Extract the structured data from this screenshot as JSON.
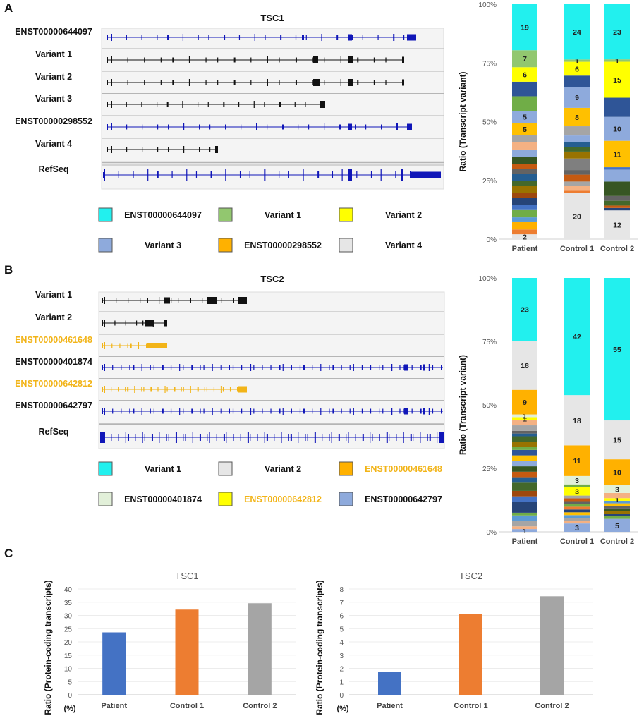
{
  "panels": {
    "A": {
      "label": "A",
      "gene": "TSC1",
      "tracks": [
        {
          "name": "ENST00000644097",
          "color": "#1016b8",
          "label_color": "#111111"
        },
        {
          "name": "Variant 1",
          "color": "#111111",
          "label_color": "#111111"
        },
        {
          "name": "Variant 2",
          "color": "#111111",
          "label_color": "#111111"
        },
        {
          "name": "Variant 3",
          "color": "#111111",
          "label_color": "#111111"
        },
        {
          "name": "ENST00000298552",
          "color": "#1016b8",
          "label_color": "#111111"
        },
        {
          "name": "Variant 4",
          "color": "#111111",
          "label_color": "#111111"
        },
        {
          "name": "RefSeq",
          "color": "#1016b8",
          "label_color": "#111111"
        }
      ],
      "legend": [
        {
          "label": "ENST00000644097",
          "color": "#22f0ee",
          "text_color": "#111111"
        },
        {
          "label": "Variant 1",
          "color": "#92c76f",
          "text_color": "#111111"
        },
        {
          "label": "Variant 2",
          "color": "#ffff00",
          "text_color": "#111111"
        },
        {
          "label": "Variant 3",
          "color": "#8eaadc",
          "text_color": "#111111"
        },
        {
          "label": "ENST00000298552",
          "color": "#ffb100",
          "text_color": "#111111"
        },
        {
          "label": "Variant 4",
          "color": "#e6e6e6",
          "text_color": "#111111"
        }
      ]
    },
    "B": {
      "label": "B",
      "gene": "TSC2",
      "tracks": [
        {
          "name": "Variant 1",
          "color": "#111111",
          "label_color": "#111111"
        },
        {
          "name": "Variant 2",
          "color": "#111111",
          "label_color": "#111111"
        },
        {
          "name": "ENST00000461648",
          "color": "#f2b418",
          "label_color": "#f2b418"
        },
        {
          "name": "ENST00000401874",
          "color": "#1016b8",
          "label_color": "#111111"
        },
        {
          "name": "ENST00000642812",
          "color": "#f2b418",
          "label_color": "#f2b418"
        },
        {
          "name": "ENST00000642797",
          "color": "#1016b8",
          "label_color": "#111111"
        },
        {
          "name": "RefSeq",
          "color": "#1016b8",
          "label_color": "#111111"
        }
      ],
      "legend": [
        {
          "label": "Variant 1",
          "color": "#22f0ee",
          "text_color": "#111111"
        },
        {
          "label": "Variant 2",
          "color": "#e6e6e6",
          "text_color": "#111111"
        },
        {
          "label": "ENST00000461648",
          "color": "#ffb100",
          "text_color": "#f2b418"
        },
        {
          "label": "ENST00000401874",
          "color": "#e2f0d9",
          "text_color": "#111111"
        },
        {
          "label": "ENST00000642812",
          "color": "#ffff00",
          "text_color": "#f2b418"
        },
        {
          "label": "ENST00000642797",
          "color": "#8eaadc",
          "text_color": "#111111"
        }
      ]
    },
    "C": {
      "label": "C"
    }
  },
  "chart_data": [
    {
      "id": "A-stacked",
      "type": "bar",
      "stacked": true,
      "ylabel": "Ratio (Transcript variant)",
      "ytick_labels": [
        "0%",
        "25%",
        "50%",
        "75%",
        "100%"
      ],
      "categories": [
        "Patient",
        "Control 1",
        "Control 2"
      ],
      "series_labeled": [
        {
          "name": "ENST00000644097",
          "color": "#22f0ee",
          "values": [
            19,
            24,
            23
          ]
        },
        {
          "name": "Variant 1",
          "color": "#92c76f",
          "values": [
            7,
            1,
            null
          ]
        },
        {
          "name": "Variant 2",
          "color": "#ffff00",
          "values": [
            6,
            6,
            15
          ]
        },
        {
          "name": "Variant 3",
          "color": "#8eaadc",
          "values": [
            5,
            9,
            10
          ]
        },
        {
          "name": "ENST00000298552",
          "color": "#ffb100",
          "values": [
            5,
            8,
            11
          ]
        },
        {
          "name": "Variant 4",
          "color": "#e6e6e6",
          "values": [
            2,
            20,
            12
          ]
        }
      ],
      "extra_labels": [
        {
          "category": "Control 2",
          "value": 1,
          "at_percent": 75.5
        }
      ],
      "stacks": [
        [
          {
            "v": 2,
            "c": "#e6e6e6",
            "label": "2"
          },
          {
            "v": 2,
            "c": "#ed7d31"
          },
          {
            "v": 3,
            "c": "#ffb100"
          },
          {
            "v": 2,
            "c": "#5b9bd5"
          },
          {
            "v": 3,
            "c": "#70ad47"
          },
          {
            "v": 2,
            "c": "#4472c4"
          },
          {
            "v": 3,
            "c": "#264478"
          },
          {
            "v": 2,
            "c": "#9e480e"
          },
          {
            "v": 3,
            "c": "#997300"
          },
          {
            "v": 2,
            "c": "#43682b"
          },
          {
            "v": 3,
            "c": "#255e91"
          },
          {
            "v": 2,
            "c": "#636363"
          },
          {
            "v": 2,
            "c": "#c55a11"
          },
          {
            "v": 3,
            "c": "#375623"
          },
          {
            "v": 3,
            "c": "#8eaadc"
          },
          {
            "v": 3,
            "c": "#f4b183"
          },
          {
            "v": 3,
            "c": "#a5a5a5"
          },
          {
            "v": 5,
            "c": "#ffc000",
            "label": "5"
          },
          {
            "v": 5,
            "c": "#8eaadc",
            "label": "5"
          },
          {
            "v": 6,
            "c": "#70ad47"
          },
          {
            "v": 6,
            "c": "#2f5597"
          },
          {
            "v": 6,
            "c": "#ffff00",
            "label": "6"
          },
          {
            "v": 7,
            "c": "#92c76f",
            "label": "7"
          },
          {
            "v": 19,
            "c": "#22f0ee",
            "label": "19"
          }
        ],
        [
          {
            "v": 20,
            "c": "#e6e6e6",
            "label": "20"
          },
          {
            "v": 1,
            "c": "#ed7d31"
          },
          {
            "v": 2,
            "c": "#f4b183"
          },
          {
            "v": 2,
            "c": "#a5a5a5"
          },
          {
            "v": 3,
            "c": "#c55a11"
          },
          {
            "v": 2,
            "c": "#636363"
          },
          {
            "v": 5,
            "c": "#7f7f7f"
          },
          {
            "v": 3,
            "c": "#997300"
          },
          {
            "v": 2,
            "c": "#43682b"
          },
          {
            "v": 2,
            "c": "#255e91"
          },
          {
            "v": 3,
            "c": "#8eaadc"
          },
          {
            "v": 4,
            "c": "#a5a5a5"
          },
          {
            "v": 8,
            "c": "#ffc000",
            "label": "8"
          },
          {
            "v": 9,
            "c": "#8eaadc",
            "label": "9"
          },
          {
            "v": 5,
            "c": "#2f5597"
          },
          {
            "v": 6,
            "c": "#ffff00",
            "label": "6"
          },
          {
            "v": 1,
            "c": "#92c76f",
            "label": "1"
          },
          {
            "v": 24,
            "c": "#22f0ee",
            "label": "24"
          }
        ],
        [
          {
            "v": 12,
            "c": "#e6e6e6",
            "label": "12"
          },
          {
            "v": 1,
            "c": "#264478"
          },
          {
            "v": 1,
            "c": "#c55a11"
          },
          {
            "v": 2,
            "c": "#43682b"
          },
          {
            "v": 2,
            "c": "#636363"
          },
          {
            "v": 6,
            "c": "#375623"
          },
          {
            "v": 5,
            "c": "#8eaadc"
          },
          {
            "v": 1,
            "c": "#4472c4"
          },
          {
            "v": 11,
            "c": "#ffc000",
            "label": "11"
          },
          {
            "v": 10,
            "c": "#8eaadc",
            "label": "10"
          },
          {
            "v": 8,
            "c": "#2f5597"
          },
          {
            "v": 15,
            "c": "#ffff00",
            "label": "15"
          },
          {
            "v": 1,
            "c": "#92c76f",
            "label": "1"
          },
          {
            "v": 23,
            "c": "#22f0ee",
            "label": "23"
          }
        ]
      ]
    },
    {
      "id": "B-stacked",
      "type": "bar",
      "stacked": true,
      "ylabel": "Ratio  (Transcript variant)",
      "ytick_labels": [
        "0%",
        "25%",
        "50%",
        "75%",
        "100%"
      ],
      "categories": [
        "Patient",
        "Control 1",
        "Control 2"
      ],
      "series_labeled": [
        {
          "name": "Variant 1",
          "color": "#22f0ee",
          "values": [
            23,
            42,
            55
          ]
        },
        {
          "name": "Variant 2",
          "color": "#e6e6e6",
          "values": [
            18,
            18,
            15
          ]
        },
        {
          "name": "ENST00000461648",
          "color": "#ffb100",
          "values": [
            9,
            11,
            10
          ]
        },
        {
          "name": "ENST00000401874",
          "color": "#e2f0d9",
          "values": [
            1,
            3,
            3
          ]
        },
        {
          "name": "ENST00000642812",
          "color": "#ffff00",
          "values": [
            1,
            3,
            1
          ]
        },
        {
          "name": "ENST00000642797",
          "color": "#8eaadc",
          "values": [
            1,
            3,
            5
          ]
        }
      ],
      "stacks": [
        [
          {
            "v": 1,
            "c": "#8eaadc",
            "label": "1"
          },
          {
            "v": 1,
            "c": "#f4b183"
          },
          {
            "v": 2,
            "c": "#a5a5a5"
          },
          {
            "v": 2,
            "c": "#5b9bd5"
          },
          {
            "v": 1,
            "c": "#70ad47"
          },
          {
            "v": 4,
            "c": "#264478"
          },
          {
            "v": 2,
            "c": "#4472c4"
          },
          {
            "v": 2,
            "c": "#9e480e"
          },
          {
            "v": 3,
            "c": "#43682b"
          },
          {
            "v": 2,
            "c": "#255e91"
          },
          {
            "v": 2,
            "c": "#c55a11"
          },
          {
            "v": 2,
            "c": "#375623"
          },
          {
            "v": 2,
            "c": "#8eaadc"
          },
          {
            "v": 2,
            "c": "#ffc000"
          },
          {
            "v": 2,
            "c": "#2f5597"
          },
          {
            "v": 1,
            "c": "#70ad47"
          },
          {
            "v": 2,
            "c": "#997300"
          },
          {
            "v": 2,
            "c": "#43682b"
          },
          {
            "v": 1,
            "c": "#255e91"
          },
          {
            "v": 1,
            "c": "#636363"
          },
          {
            "v": 2,
            "c": "#a5a5a5"
          },
          {
            "v": 2,
            "c": "#f4b183"
          },
          {
            "v": 1,
            "c": "#ffff00",
            "label": "1"
          },
          {
            "v": 1,
            "c": "#e2f0d9",
            "label": "1"
          },
          {
            "v": 9,
            "c": "#ffb100",
            "label": "9"
          },
          {
            "v": 18,
            "c": "#e6e6e6",
            "label": "18"
          },
          {
            "v": 23,
            "c": "#22f0ee",
            "label": "23"
          }
        ],
        [
          {
            "v": 3,
            "c": "#8eaadc",
            "label": "3"
          },
          {
            "v": 1,
            "c": "#f4b183"
          },
          {
            "v": 1,
            "c": "#a5a5a5"
          },
          {
            "v": 1,
            "c": "#5b9bd5"
          },
          {
            "v": 1,
            "c": "#ffc000"
          },
          {
            "v": 1,
            "c": "#264478"
          },
          {
            "v": 1,
            "c": "#ed7d31"
          },
          {
            "v": 1,
            "c": "#70ad47"
          },
          {
            "v": 1,
            "c": "#636363"
          },
          {
            "v": 1,
            "c": "#c55a11"
          },
          {
            "v": 1,
            "c": "#a5a5a5"
          },
          {
            "v": 3,
            "c": "#ffff00",
            "label": "3"
          },
          {
            "v": 1,
            "c": "#70ad47"
          },
          {
            "v": 3,
            "c": "#e2f0d9",
            "label": "3"
          },
          {
            "v": 11,
            "c": "#ffb100",
            "label": "11"
          },
          {
            "v": 18,
            "c": "#e6e6e6",
            "label": "18"
          },
          {
            "v": 42,
            "c": "#22f0ee",
            "label": "42"
          }
        ],
        [
          {
            "v": 5,
            "c": "#8eaadc",
            "label": "5"
          },
          {
            "v": 1,
            "c": "#70ad47"
          },
          {
            "v": 1,
            "c": "#264478"
          },
          {
            "v": 1,
            "c": "#997300"
          },
          {
            "v": 1,
            "c": "#375623"
          },
          {
            "v": 1,
            "c": "#636363"
          },
          {
            "v": 1,
            "c": "#ffc000"
          },
          {
            "v": 1,
            "c": "#5b9bd5"
          },
          {
            "v": 1,
            "c": "#ffff00",
            "label": "1"
          },
          {
            "v": 2,
            "c": "#f4b183"
          },
          {
            "v": 3,
            "c": "#e2f0d9",
            "label": "3"
          },
          {
            "v": 10,
            "c": "#ffb100",
            "label": "10"
          },
          {
            "v": 15,
            "c": "#e6e6e6",
            "label": "15"
          },
          {
            "v": 55,
            "c": "#22f0ee",
            "label": "55"
          }
        ]
      ]
    },
    {
      "id": "C-TSC1",
      "type": "bar",
      "title": "TSC1",
      "ylabel": "Ratio  (Protein-coding transcripts)",
      "yunit": "(%)",
      "categories": [
        "Patient",
        "Control 1",
        "Control 2"
      ],
      "values": [
        23.6,
        32.2,
        34.6
      ],
      "colors": [
        "#4472c4",
        "#ed7d31",
        "#a5a5a5"
      ],
      "ylim": [
        0,
        40
      ],
      "yticks": [
        0,
        5,
        10,
        15,
        20,
        25,
        30,
        35,
        40
      ]
    },
    {
      "id": "C-TSC2",
      "type": "bar",
      "title": "TSC2",
      "ylabel": "Ratio  (Protein-coding transcripts)",
      "yunit": "(%)",
      "categories": [
        "Patient",
        "Control 1",
        "Control 2"
      ],
      "values": [
        1.75,
        6.1,
        7.45
      ],
      "colors": [
        "#4472c4",
        "#ed7d31",
        "#a5a5a5"
      ],
      "ylim": [
        0,
        8
      ],
      "yticks": [
        0,
        1,
        2,
        3,
        4,
        5,
        6,
        7,
        8
      ]
    }
  ]
}
